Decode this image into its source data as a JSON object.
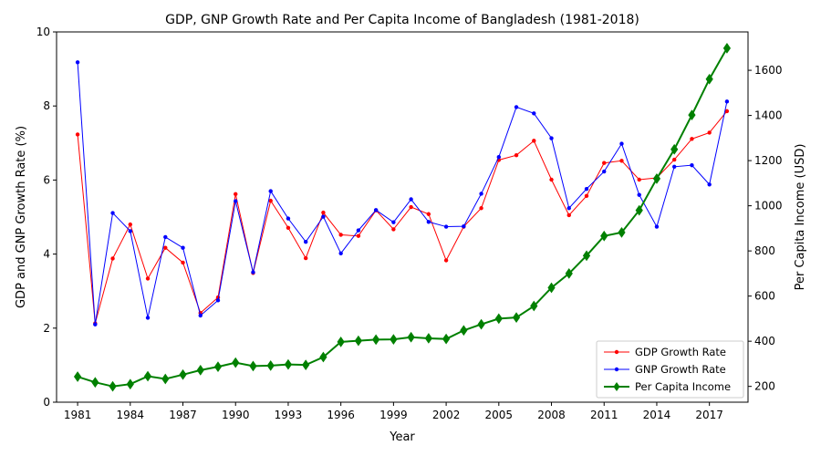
{
  "chart_data": {
    "type": "line",
    "title": "GDP, GNP Growth Rate and Per Capita Income of Bangladesh (1981-2018)",
    "xlabel": "Year",
    "ylabel_left": "GDP and GNP Growth Rate (%)",
    "ylabel_right": "Per Capita Income (USD)",
    "x": [
      1981,
      1982,
      1983,
      1984,
      1985,
      1986,
      1987,
      1988,
      1989,
      1990,
      1991,
      1992,
      1993,
      1994,
      1995,
      1996,
      1997,
      1998,
      1999,
      2000,
      2001,
      2002,
      2003,
      2004,
      2005,
      2006,
      2007,
      2008,
      2009,
      2010,
      2011,
      2012,
      2013,
      2014,
      2015,
      2016,
      2017,
      2018
    ],
    "xlim": [
      1979.8,
      2019.2
    ],
    "x_ticks": [
      "1981",
      "1984",
      "1987",
      "1990",
      "1993",
      "1996",
      "1999",
      "2002",
      "2005",
      "2008",
      "2011",
      "2014",
      "2017"
    ],
    "y_left_lim": [
      0,
      10
    ],
    "y_left_ticks": [
      "0",
      "2",
      "4",
      "6",
      "8",
      "10"
    ],
    "y_right_lim": [
      130,
      1770
    ],
    "y_right_ticks": [
      "200",
      "400",
      "600",
      "800",
      "1000",
      "1200",
      "1400",
      "1600"
    ],
    "grid": false,
    "legend_position": "bottom-right",
    "series": [
      {
        "name": "GDP Growth Rate",
        "axis": "left",
        "color": "#ff0000",
        "marker": "circle",
        "values": [
          7.23,
          2.13,
          3.88,
          4.8,
          3.34,
          4.17,
          3.77,
          2.41,
          2.83,
          5.62,
          3.49,
          5.44,
          4.71,
          3.89,
          5.12,
          4.52,
          4.49,
          5.18,
          4.67,
          5.27,
          5.08,
          3.83,
          4.74,
          5.24,
          6.54,
          6.67,
          7.06,
          6.01,
          5.05,
          5.57,
          6.46,
          6.52,
          6.01,
          6.06,
          6.55,
          7.11,
          7.28,
          7.86
        ]
      },
      {
        "name": "GNP Growth Rate",
        "axis": "left",
        "color": "#0000ff",
        "marker": "circle",
        "values": [
          9.18,
          2.1,
          5.11,
          4.62,
          2.28,
          4.46,
          4.17,
          2.34,
          2.75,
          5.43,
          3.51,
          5.7,
          4.96,
          4.33,
          5.01,
          4.02,
          4.64,
          5.19,
          4.86,
          5.48,
          4.87,
          4.74,
          4.75,
          5.63,
          6.62,
          7.97,
          7.8,
          7.13,
          5.24,
          5.76,
          6.23,
          6.98,
          5.6,
          4.74,
          6.36,
          6.4,
          5.88,
          8.12
        ]
      },
      {
        "name": "Per Capita Income",
        "axis": "right",
        "color": "#008000",
        "marker": "diamond",
        "values": [
          243,
          218,
          200,
          210,
          245,
          233,
          252,
          272,
          287,
          305,
          290,
          292,
          297,
          295,
          330,
          397,
          402,
          407,
          408,
          418,
          413,
          410,
          448,
          475,
          500,
          505,
          556,
          637,
          700,
          779,
          866,
          882,
          980,
          1120,
          1250,
          1402,
          1561,
          1698
        ]
      }
    ]
  }
}
